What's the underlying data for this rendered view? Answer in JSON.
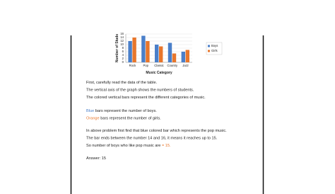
{
  "chart_data": {
    "type": "bar",
    "ylabel": "Number of Stude",
    "xlabel": "Music Category",
    "categories": [
      "Rock",
      "Pop",
      "Classic",
      "Country",
      "Jazz"
    ],
    "series": [
      {
        "name": "Boys",
        "color": "#4a7fc9",
        "values": [
          12,
          15,
          10,
          11,
          6
        ]
      },
      {
        "name": "Girls",
        "color": "#e8762b",
        "values": [
          14,
          12,
          9,
          5,
          7
        ]
      }
    ],
    "ylim": [
      0,
      16
    ],
    "yticks": [
      0,
      2,
      4,
      6,
      8,
      10,
      12,
      14,
      16
    ],
    "grid": true,
    "legend": "right"
  },
  "text": {
    "p1": [
      "First, carefully read the data of the table.",
      "The vertical axis of the graph shows the numbers of students.",
      "The colored vertical bars represent the different categories of music."
    ],
    "p2": [
      [
        "Blue",
        " bars represent the number of boys."
      ],
      [
        "Orange",
        " bars represent the number of girls."
      ]
    ],
    "p3": [
      [
        "In above problem first find that blue colored bar which represents the pop music.",
        ""
      ],
      [
        "The bar ends between the number 14 and 16, it means it reaches up to 15.",
        ""
      ],
      [
        "So number of boys who like pop music are ",
        "= 15."
      ]
    ],
    "answer": "Answer: 15"
  }
}
